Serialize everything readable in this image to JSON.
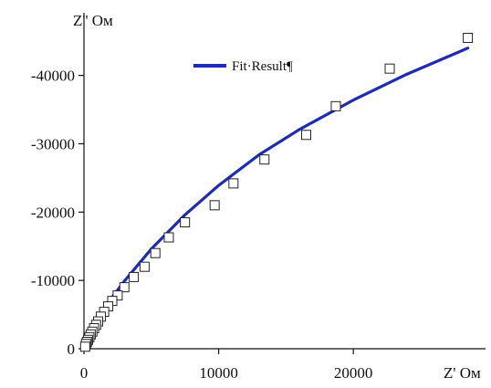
{
  "chart_data": {
    "type": "scatter",
    "title": "",
    "xlabel": "Z' Ом",
    "ylabel": "Z'' Ом",
    "xlim": [
      0,
      29000
    ],
    "ylim": [
      0,
      -46500
    ],
    "x_ticks": [
      0,
      10000,
      20000
    ],
    "x_tick_labels": [
      "0",
      "10000",
      "20000"
    ],
    "y_ticks": [
      0,
      -10000,
      -20000,
      -30000,
      -40000
    ],
    "y_tick_labels": [
      "0",
      "-10000",
      "-20000",
      "-30000",
      "-40000"
    ],
    "grid": false,
    "legend_position": "top-center",
    "series": [
      {
        "kind": "points",
        "marker": "open-square",
        "color": "#222222",
        "x": [
          28500,
          22700,
          18700,
          16500,
          13400,
          11100,
          9700,
          7500,
          6300,
          5300,
          4500,
          3700,
          3000,
          2500,
          2100,
          1800,
          1500,
          1250,
          1050,
          900,
          750,
          620,
          500,
          400,
          300,
          220,
          150,
          90
        ],
        "y": [
          -45500,
          -41000,
          -35500,
          -31300,
          -27700,
          -24200,
          -21000,
          -18500,
          -16300,
          -14000,
          -12000,
          -10500,
          -9000,
          -7800,
          -7000,
          -6200,
          -5400,
          -4700,
          -4000,
          -3500,
          -3000,
          -2500,
          -2100,
          -1700,
          -1300,
          -1000,
          -700,
          -300
        ]
      },
      {
        "name": "Fit·Result¶",
        "kind": "line",
        "color": "#1e2ab8",
        "x": [
          0,
          200,
          500,
          1000,
          2000,
          3000,
          5000,
          7500,
          10000,
          13000,
          16000,
          20000,
          24000,
          28500
        ],
        "y": [
          0,
          -1000,
          -2500,
          -4400,
          -7300,
          -9900,
          -14600,
          -19600,
          -23900,
          -28400,
          -32100,
          -36400,
          -40200,
          -44000
        ]
      }
    ]
  }
}
